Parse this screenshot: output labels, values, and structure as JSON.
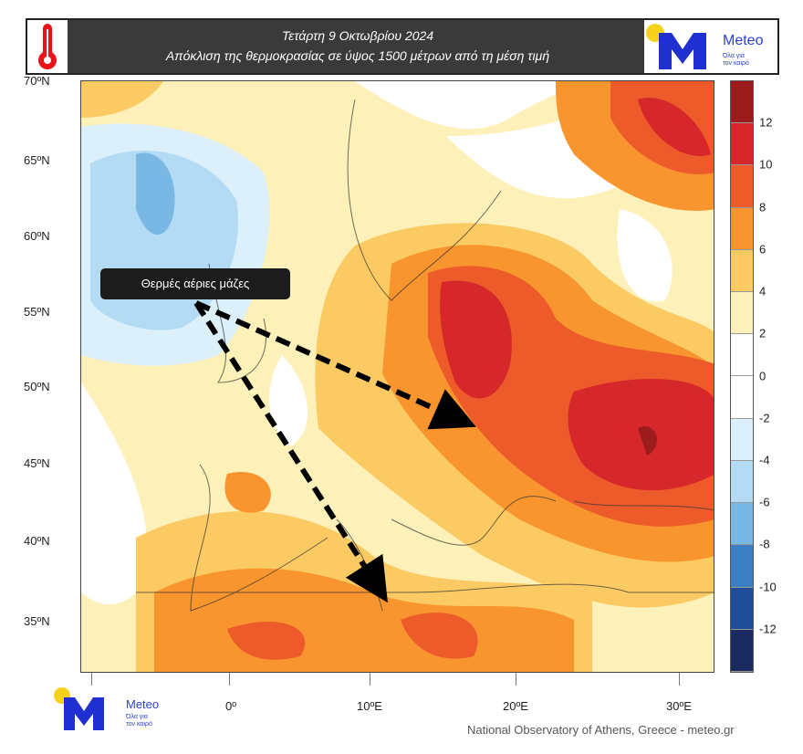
{
  "header": {
    "date": "Τετάρτη 9 Οκτωβρίου 2024",
    "subtitle": "Απόκλιση της θερμοκρασίας σε ύψος 1500 μέτρων από τη μέση τιμή",
    "thermometer_icon": "thermometer-icon"
  },
  "logo": {
    "word": "Meteo",
    "tagline_1": "Όλα για",
    "tagline_2": "τον καιρό"
  },
  "map": {
    "lat_labels": [
      "70ºN",
      "65ºN",
      "60ºN",
      "55ºN",
      "50ºN",
      "45ºN",
      "40ºN",
      "35ºN"
    ],
    "lon_labels": [
      "0º",
      "10ºE",
      "20ºE",
      "30ºE"
    ],
    "annotation": "Θερμές αέριες μάζες",
    "arrows": [
      "toward Central Europe (Poland/Hungary)",
      "toward Italy / Tunisia"
    ]
  },
  "colorbar": {
    "labels": [
      "12",
      "10",
      "8",
      "6",
      "4",
      "2",
      "0",
      "-2",
      "-4",
      "-6",
      "-8",
      "-10",
      "-12"
    ],
    "colors": [
      "#9c1c1e",
      "#d6282b",
      "#ee5b2b",
      "#f9952f",
      "#fcca62",
      "#fdf1bb",
      "#ffffff",
      "#ffffff",
      "#dcf0fb",
      "#b3dbf4",
      "#79b8e5",
      "#3b7fc2",
      "#1f4c98",
      "#1b2b62"
    ]
  },
  "footer": {
    "credit": "National Observatory of Athens, Greece - meteo.gr"
  }
}
